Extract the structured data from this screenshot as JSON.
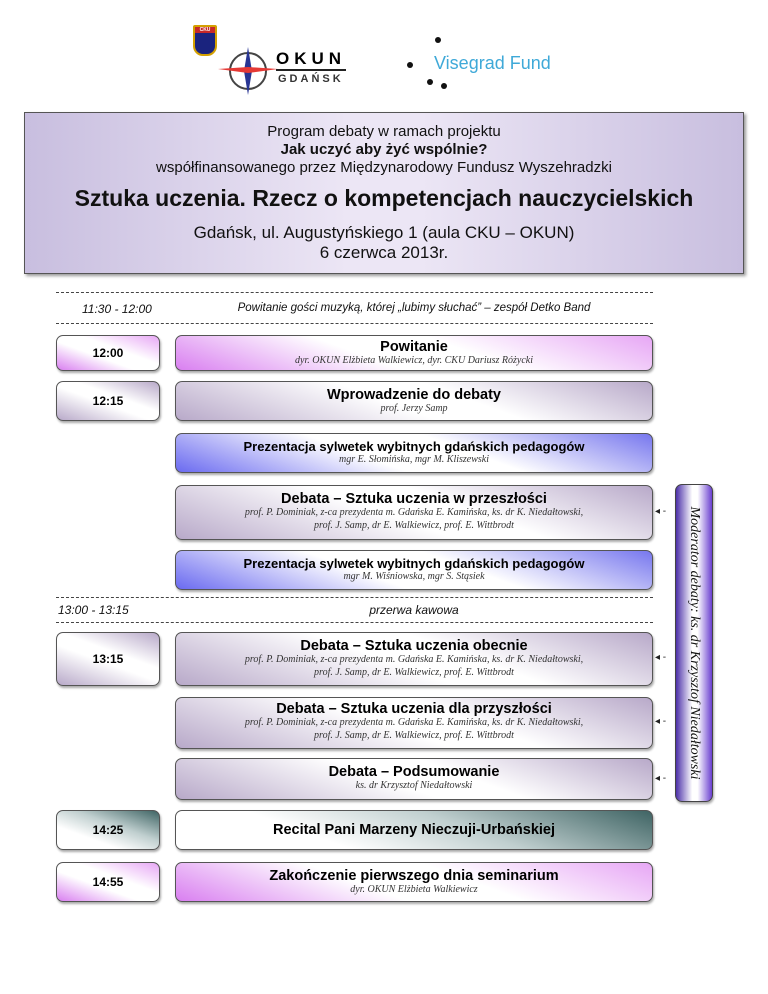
{
  "logos": {
    "cku": "CKU",
    "okun_top": "OKUN",
    "okun_bottom": "GDAŃSK",
    "visegrad": "Visegrad Fund"
  },
  "header": {
    "line1": "Program debaty w ramach projektu",
    "line2": "Jak uczyć aby żyć wspólnie?",
    "line3": "współfinansowanego przez Międzynarodowy Fundusz Wyszehradzki",
    "title": "Sztuka uczenia. Rzecz o kompetencjach nauczycielskich",
    "place": "Gdańsk, ul. Augustyńskiego 1 (aula CKU – OKUN)",
    "date": "6 czerwca 2013r."
  },
  "rows": {
    "welcome": {
      "time": "11:30 - 12:00",
      "text": "Powitanie gości muzyką, której „lubimy słuchać” – zespół Detko Band"
    },
    "break": {
      "time": "13:00 - 13:15",
      "text": "przerwa kawowa"
    }
  },
  "times": [
    "12:00",
    "12:15",
    "13:15",
    "14:25",
    "14:55"
  ],
  "events": [
    {
      "title": "Powitanie",
      "sub": "dyr. OKUN Elżbieta Walkiewicz, dyr. CKU Dariusz Różycki"
    },
    {
      "title": "Wprowadzenie do debaty",
      "sub": "prof. Jerzy Samp"
    },
    {
      "title": "Prezentacja sylwetek wybitnych gdańskich pedagogów",
      "sub": "mgr E. Słomińska, mgr M. Kliszewski"
    },
    {
      "title": "Debata – Sztuka uczenia w przeszłości",
      "sub": "prof. P. Dominiak, z-ca prezydenta m. Gdańska E. Kamińska, ks. dr K. Niedałtowski,",
      "sub2": "prof. J. Samp, dr E. Walkiewicz, prof. E. Wittbrodt"
    },
    {
      "title": "Prezentacja sylwetek wybitnych gdańskich pedagogów",
      "sub": "mgr M. Wiśniowska, mgr S. Stąsiek"
    },
    {
      "title": "Debata – Sztuka uczenia obecnie",
      "sub": "prof. P. Dominiak, z-ca prezydenta m. Gdańska E. Kamińska, ks. dr K. Niedałtowski,",
      "sub2": "prof. J. Samp, dr E. Walkiewicz, prof. E. Wittbrodt"
    },
    {
      "title": "Debata – Sztuka uczenia dla przyszłości",
      "sub": "prof. P. Dominiak, z-ca prezydenta m. Gdańska E. Kamińska, ks. dr K. Niedałtowski,",
      "sub2": "prof. J. Samp, dr E. Walkiewicz, prof. E. Wittbrodt"
    },
    {
      "title": "Debata – Podsumowanie",
      "sub": "ks. dr Krzysztof Niedałtowski"
    },
    {
      "title": "Recital Pani Marzeny Nieczuji-Urbańskiej"
    },
    {
      "title": "Zakończenie pierwszego dnia seminarium",
      "sub": "dyr. OKUN Elżbieta Walkiewicz"
    }
  ],
  "moderator": "Moderator debaty: ks. dr Krzysztof Niedałtowski",
  "colors": {
    "header_bg": "#c8bedf",
    "pink": "#d980ef",
    "blue": "#6a6af0",
    "grey_purple": "#b8a9c9",
    "teal": "#3f6464"
  }
}
